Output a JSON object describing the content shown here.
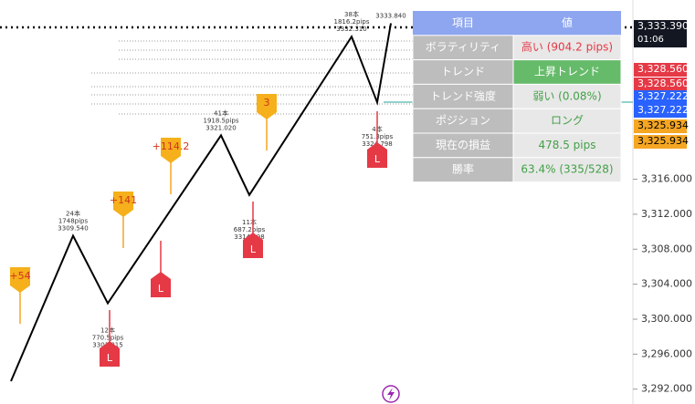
{
  "chart": {
    "ylim": [
      3290.3,
      3336.5
    ],
    "yticks": [
      {
        "value": 3292,
        "label": "3,292.000"
      },
      {
        "value": 3296,
        "label": "3,296.000"
      },
      {
        "value": 3300,
        "label": "3,300.000"
      },
      {
        "value": 3304,
        "label": "3,304.000"
      },
      {
        "value": 3308,
        "label": "3,308.000"
      },
      {
        "value": 3312,
        "label": "3,312.000"
      },
      {
        "value": 3316,
        "label": "3,316.000"
      }
    ],
    "pivots": [
      {
        "value": 3309.54,
        "label": "3309.540",
        "bars": "24本",
        "pips": "1748pips"
      },
      {
        "value": 3301.815,
        "label": "3301.815",
        "bars": "12本",
        "pips": "770.5pips"
      },
      {
        "value": 3321.02,
        "label": "3321.020",
        "bars": "41本",
        "pips": "1918.5pips"
      },
      {
        "value": 3314.198,
        "label": "3314.198",
        "bars": "11本",
        "pips": "687.2pips"
      },
      {
        "value": 3332.31,
        "label": "3332.310",
        "bars": "38本",
        "pips": "1816.2pips"
      },
      {
        "value": 3324.798,
        "label": "3324.798",
        "bars": "4本",
        "pips": "751.3pips"
      },
      {
        "value": 3333.84,
        "label": "3333.840"
      }
    ]
  },
  "signals": [
    "+54",
    "+141",
    "+114.2",
    "3"
  ],
  "exit_markers": [
    "L",
    "L",
    "L",
    "L"
  ],
  "price_badges": [
    {
      "price": "3,333.390",
      "time": "01:06"
    },
    {
      "price": "3,328.560"
    },
    {
      "price": "3,328.560"
    },
    {
      "price": "3,327.222"
    },
    {
      "price": "3,327.222"
    },
    {
      "price": "3,325.934"
    },
    {
      "price": "3,325.934"
    }
  ],
  "table": {
    "header": [
      "項目",
      "値"
    ],
    "rows": [
      [
        "ボラティリティ",
        "高い (904.2 pips)"
      ],
      [
        "トレンド",
        "上昇トレンド"
      ],
      [
        "トレンド強度",
        "弱い (0.08%)"
      ],
      [
        "ポジション",
        "ロング"
      ],
      [
        "現在の損益",
        "478.5 pips"
      ],
      [
        "勝率",
        "63.4% (335/528)"
      ]
    ]
  }
}
